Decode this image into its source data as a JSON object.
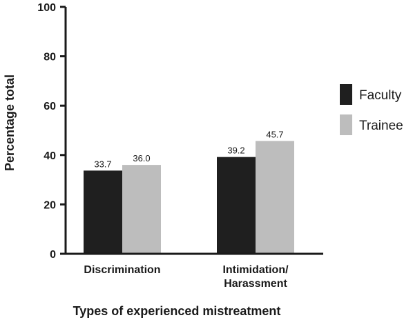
{
  "chart_data": {
    "type": "bar",
    "categories": [
      "Discrimination",
      "Intimidation/\nHarassment"
    ],
    "series": [
      {
        "name": "Faculty",
        "values": [
          33.7,
          39.2
        ],
        "color": "#1f1f1f"
      },
      {
        "name": "Trainee",
        "values": [
          36.0,
          45.7
        ],
        "color": "#bdbdbd"
      }
    ],
    "data_labels": [
      [
        "33.7",
        "39.2"
      ],
      [
        "36.0",
        "45.7"
      ]
    ],
    "title": "",
    "xlabel": "Types of experienced mistreatment",
    "ylabel": "Percentage total",
    "ylim": [
      0,
      100
    ],
    "yticks": [
      0,
      20,
      40,
      60,
      80,
      100
    ],
    "grid": false,
    "legend_position": "right"
  }
}
